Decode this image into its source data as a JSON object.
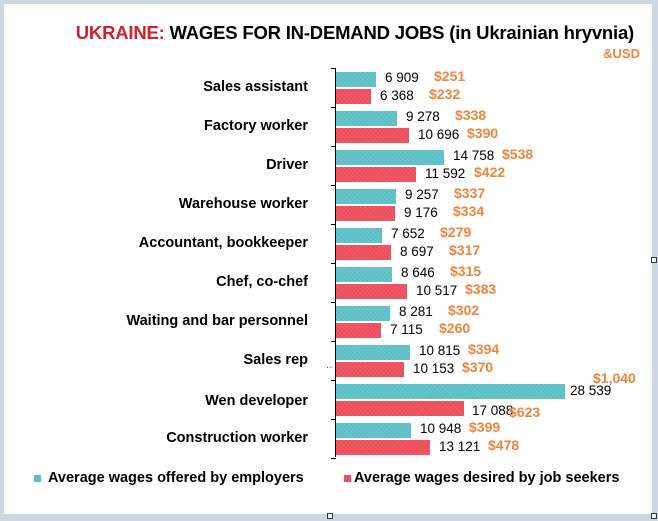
{
  "header": {
    "title_prefix": "UKRAINE:",
    "title_main": " WAGES FOR IN-DEMAND JOBS (in Ukrainian hryvnia)",
    "subtitle": "&USD"
  },
  "colors": {
    "employers": "#5cbfc6",
    "seekers": "#ee4d5a",
    "usd": "#f0843c",
    "title_accent": "#d0202e"
  },
  "legend": {
    "employers": "Average wages offered by employers",
    "seekers": "Average wages desired by job seekers"
  },
  "rows": [
    {
      "label": "Sales assistant",
      "offered": "6 909",
      "offered_usd": "$251",
      "desired": "6 368",
      "desired_usd": "$232"
    },
    {
      "label": "Factory worker",
      "offered": "9 278",
      "offered_usd": "$338",
      "desired": "10 696",
      "desired_usd": "$390"
    },
    {
      "label": "Driver",
      "offered": "14 758",
      "offered_usd": "$538",
      "desired": "11 592",
      "desired_usd": "$422"
    },
    {
      "label": "Warehouse worker",
      "offered": "9 257",
      "offered_usd": "$337",
      "desired": "9 176",
      "desired_usd": "$334"
    },
    {
      "label": "Accountant, bookkeeper",
      "offered": "7 652",
      "offered_usd": "$279",
      "desired": "8 697",
      "desired_usd": "$317"
    },
    {
      "label": "Chef, co-chef",
      "offered": "8 646",
      "offered_usd": "$315",
      "desired": "10 517",
      "desired_usd": "$383"
    },
    {
      "label": "Waiting and bar personnel",
      "offered": "8 281",
      "offered_usd": "$302",
      "desired": "7 115",
      "desired_usd": "$260"
    },
    {
      "label": "Sales rep",
      "offered": "10 815",
      "offered_usd": "$394",
      "desired": "10 153",
      "desired_usd": "$370"
    },
    {
      "label": "Wen developer",
      "offered": "28 539",
      "offered_usd": "$1,040",
      "desired": "17 088",
      "desired_usd": "$623"
    },
    {
      "label": "Construction worker",
      "offered": "10 948",
      "offered_usd": "$399",
      "desired": "13 121",
      "desired_usd": "$478"
    }
  ],
  "chart_data": {
    "type": "bar",
    "orientation": "horizontal",
    "title": "UKRAINE: WAGES FOR IN-DEMAND JOBS (in Ukrainian hryvnia) &USD",
    "xlabel": "",
    "ylabel": "",
    "grid": false,
    "legend_position": "bottom",
    "categories": [
      "Sales assistant",
      "Factory worker",
      "Driver",
      "Warehouse worker",
      "Accountant, bookkeeper",
      "Chef, co-chef",
      "Waiting and bar personnel",
      "Sales rep",
      "Wen developer",
      "Construction worker"
    ],
    "series": [
      {
        "name": "Average wages offered by employers",
        "color": "#5cbfc6",
        "values": [
          6909,
          9278,
          14758,
          9257,
          7652,
          8646,
          8281,
          10815,
          28539,
          10948
        ],
        "usd": [
          251,
          338,
          538,
          337,
          279,
          315,
          302,
          394,
          1040,
          399
        ]
      },
      {
        "name": "Average wages desired by job seekers",
        "color": "#ee4d5a",
        "values": [
          6368,
          10696,
          11592,
          9176,
          8697,
          10517,
          7115,
          10153,
          17088,
          13121
        ],
        "usd": [
          232,
          390,
          422,
          334,
          317,
          383,
          260,
          370,
          623,
          478
        ]
      }
    ]
  }
}
